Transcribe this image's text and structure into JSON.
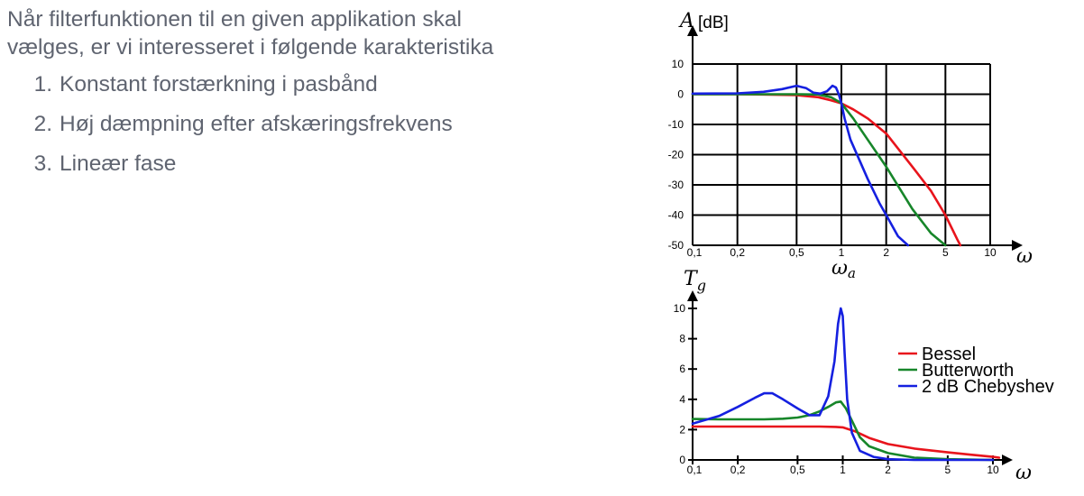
{
  "slide": {
    "intro_line1": "Når filterfunktionen til en given applikation skal",
    "intro_line2": "vælges, er vi interesseret i følgende karakteristika",
    "criteria": [
      {
        "num": "1.",
        "text": "Konstant forstærkning i pasbånd"
      },
      {
        "num": "2.",
        "text": "Høj dæmpning efter afskæringsfrekvens"
      },
      {
        "num": "3.",
        "text": "Lineær fase"
      }
    ]
  },
  "colors": {
    "bessel": "#e8141c",
    "butterworth": "#17862a",
    "chebyshev": "#1520e0",
    "axis": "#000000"
  },
  "chart_data": [
    {
      "type": "line",
      "y_axis_symbol": "A",
      "y_axis_unit": "[dB]",
      "x_axis_symbol": "ω",
      "x_marker_label": "ωa",
      "x_scale": "log",
      "xlim": [
        0.1,
        10
      ],
      "ylim": [
        -50,
        10
      ],
      "grid": true,
      "x_ticks": [
        0.1,
        0.2,
        0.5,
        1,
        2,
        5,
        10
      ],
      "x_tick_labels": [
        "0,1",
        "0,2",
        "0,5",
        "1",
        "2",
        "5",
        "10"
      ],
      "y_ticks": [
        10,
        0,
        -10,
        -20,
        -30,
        -40,
        -50
      ],
      "y_tick_labels": [
        "10",
        "0",
        "-10",
        "-20",
        "-30",
        "-40",
        "-50"
      ],
      "series": [
        {
          "name": "Bessel",
          "color_key": "bessel",
          "x": [
            0.1,
            0.2,
            0.3,
            0.5,
            0.7,
            0.85,
            1.0,
            1.2,
            1.5,
            2.0,
            3.0,
            4.0,
            5.0,
            6.0,
            6.3
          ],
          "y": [
            0,
            0,
            -0.1,
            -0.3,
            -1,
            -2,
            -3,
            -5,
            -8,
            -13,
            -24,
            -32,
            -40,
            -48,
            -50
          ]
        },
        {
          "name": "Butterworth",
          "color_key": "butterworth",
          "x": [
            0.1,
            0.2,
            0.3,
            0.5,
            0.7,
            0.85,
            0.95,
            1.0,
            1.2,
            1.5,
            2.0,
            3.0,
            4.0,
            5.0
          ],
          "y": [
            0,
            0,
            0,
            0,
            -0.1,
            -1,
            -2.3,
            -3,
            -8,
            -15,
            -24,
            -38,
            -46,
            -50
          ]
        },
        {
          "name": "2 dB Chebyshev",
          "color_key": "chebyshev",
          "x": [
            0.1,
            0.2,
            0.3,
            0.4,
            0.5,
            0.58,
            0.65,
            0.72,
            0.8,
            0.87,
            0.92,
            0.96,
            1.0,
            1.05,
            1.15,
            1.3,
            1.5,
            1.8,
            2.0,
            2.4,
            2.8
          ],
          "y": [
            0.2,
            0.3,
            0.8,
            1.7,
            2.8,
            2.0,
            0.5,
            0.2,
            1.0,
            2.8,
            2.2,
            0,
            -3,
            -8,
            -15,
            -21,
            -28,
            -36,
            -40,
            -47,
            -50
          ]
        }
      ]
    },
    {
      "type": "line",
      "y_axis_symbol": "T",
      "y_axis_subscript": "g",
      "x_axis_symbol": "ω",
      "x_scale": "log",
      "xlim": [
        0.1,
        10
      ],
      "ylim": [
        0,
        10
      ],
      "grid": false,
      "x_ticks": [
        0.1,
        0.2,
        0.5,
        1,
        2,
        5,
        10
      ],
      "x_tick_labels": [
        "0,1",
        "0,2",
        "0,5",
        "1",
        "2",
        "5",
        "10"
      ],
      "y_ticks": [
        10,
        8,
        6,
        4,
        2,
        0
      ],
      "y_tick_labels": [
        "10",
        "8",
        "6",
        "4",
        "2",
        "0"
      ],
      "legend_position": "right",
      "series": [
        {
          "name": "Bessel",
          "color_key": "bessel",
          "x": [
            0.1,
            0.2,
            0.3,
            0.5,
            0.7,
            0.9,
            1.0,
            1.2,
            1.5,
            2.0,
            3.0,
            5.0,
            7.0,
            10.0,
            11.0
          ],
          "y": [
            2.2,
            2.2,
            2.2,
            2.2,
            2.2,
            2.18,
            2.15,
            1.9,
            1.45,
            1.05,
            0.75,
            0.5,
            0.35,
            0.2,
            0.15
          ]
        },
        {
          "name": "Butterworth",
          "color_key": "butterworth",
          "x": [
            0.1,
            0.15,
            0.2,
            0.3,
            0.4,
            0.5,
            0.6,
            0.7,
            0.8,
            0.9,
            0.97,
            1.05,
            1.15,
            1.3,
            1.5,
            2.0,
            3.0,
            5.0,
            10.0
          ],
          "y": [
            2.7,
            2.68,
            2.68,
            2.68,
            2.72,
            2.8,
            2.95,
            3.2,
            3.5,
            3.8,
            3.85,
            3.4,
            2.6,
            1.5,
            0.9,
            0.45,
            0.15,
            0.05,
            0
          ]
        },
        {
          "name": "2 dB Chebyshev",
          "color_key": "chebyshev",
          "x": [
            0.1,
            0.15,
            0.2,
            0.26,
            0.3,
            0.34,
            0.4,
            0.5,
            0.6,
            0.7,
            0.8,
            0.88,
            0.93,
            0.97,
            1.0,
            1.03,
            1.07,
            1.15,
            1.3,
            1.6,
            2.0,
            3.0,
            10.0
          ],
          "y": [
            2.4,
            2.9,
            3.5,
            4.1,
            4.4,
            4.4,
            4.0,
            3.4,
            2.95,
            2.95,
            4.2,
            6.5,
            9.0,
            10.0,
            9.5,
            7.0,
            4.0,
            1.8,
            0.6,
            0.2,
            0.05,
            0,
            0
          ]
        }
      ]
    }
  ]
}
